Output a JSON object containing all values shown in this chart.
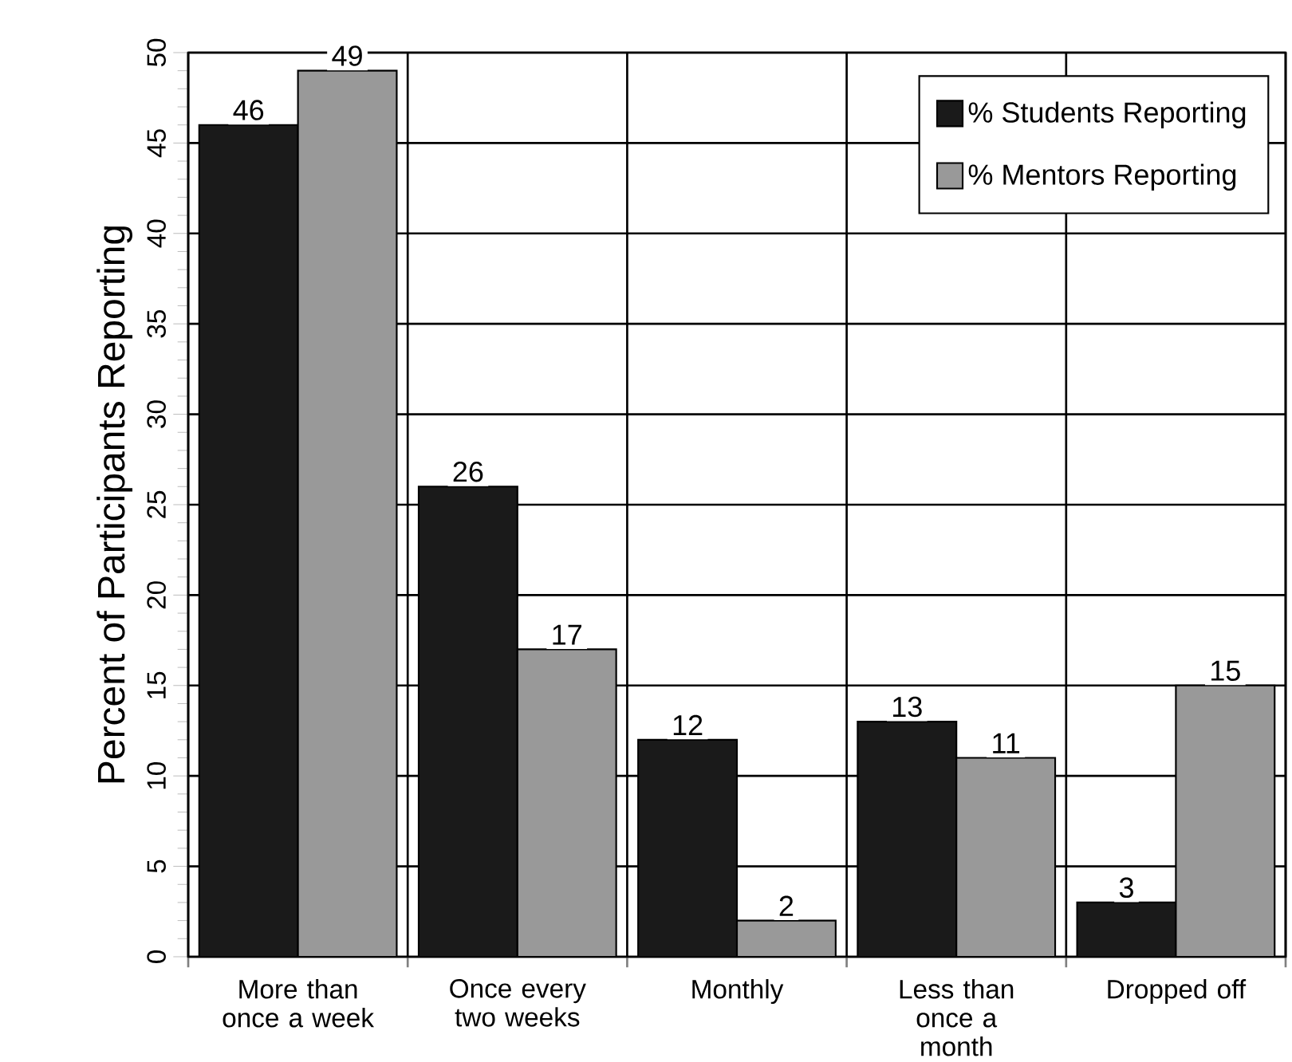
{
  "chart_data": {
    "type": "bar",
    "ylabel": "Percent of Participants Reporting",
    "categories": [
      "More than once a week",
      "Once every two weeks",
      "Monthly",
      "Less than once a month",
      "Dropped off"
    ],
    "series": [
      {
        "name": "% Students Reporting",
        "color": "#1a1a1a",
        "values": [
          46,
          26,
          12,
          13,
          3
        ]
      },
      {
        "name": "% Mentors Reporting",
        "color": "#999999",
        "values": [
          49,
          17,
          2,
          11,
          15
        ]
      }
    ],
    "ylim": [
      0,
      50
    ],
    "yticks": [
      0,
      5,
      10,
      15,
      20,
      25,
      30,
      35,
      40,
      45,
      50
    ],
    "grid": true,
    "legend": "top right",
    "data_labels": true
  }
}
